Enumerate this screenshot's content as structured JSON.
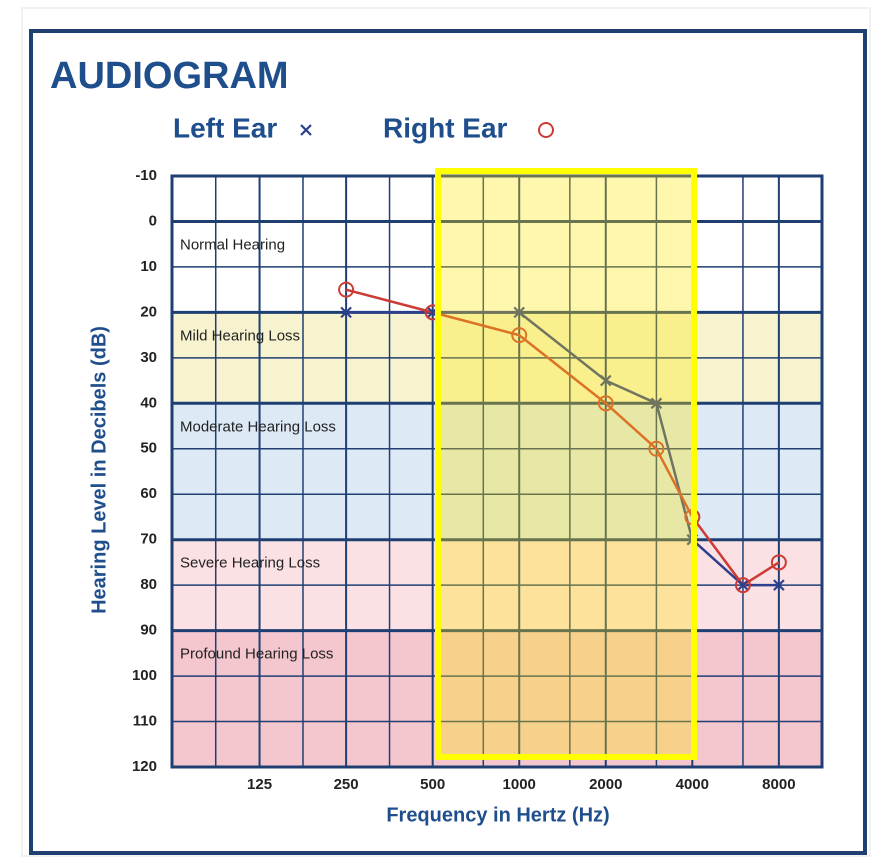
{
  "chart_data": {
    "type": "line",
    "title": "AUDIOGRAM",
    "x_label": "Frequency in Hertz (Hz)",
    "y_label": "Hearing Level in Decibels (dB)",
    "xscale": "log",
    "xlim": [
      62,
      11300
    ],
    "xticks": [
      125,
      250,
      500,
      1000,
      2000,
      4000,
      8000
    ],
    "xminorticks": [
      88,
      177,
      354,
      750,
      1500,
      3000,
      6000
    ],
    "ylim": [
      -10,
      120
    ],
    "y_inverted": true,
    "yticks": [
      -10,
      0,
      10,
      20,
      30,
      40,
      50,
      60,
      70,
      80,
      90,
      100,
      110,
      120
    ],
    "grid": true,
    "bands": [
      {
        "label": "Normal Hearing",
        "from": 0,
        "to": 20,
        "color": "#ffffff"
      },
      {
        "label": "Mild Hearing Loss",
        "from": 20,
        "to": 40,
        "color": "#f7f3cf"
      },
      {
        "label": "Moderate Hearing Loss",
        "from": 40,
        "to": 70,
        "color": "#dde9f5"
      },
      {
        "label": "Severe Hearing Loss",
        "from": 70,
        "to": 90,
        "color": "#fbe1e4"
      },
      {
        "label": "Profound Hearing Loss",
        "from": 90,
        "to": 120,
        "color": "#f4c6cd"
      }
    ],
    "x": [
      250,
      500,
      1000,
      2000,
      3000,
      4000,
      6000,
      8000
    ],
    "series": [
      {
        "name": "Left Ear",
        "marker": "x",
        "color": "#2d3f8e",
        "values": [
          20,
          20,
          20,
          35,
          40,
          70,
          80,
          80
        ]
      },
      {
        "name": "Right Ear",
        "marker": "o",
        "color": "#cc3b35",
        "values": [
          15,
          20,
          25,
          40,
          50,
          65,
          80,
          75
        ]
      }
    ]
  }
}
